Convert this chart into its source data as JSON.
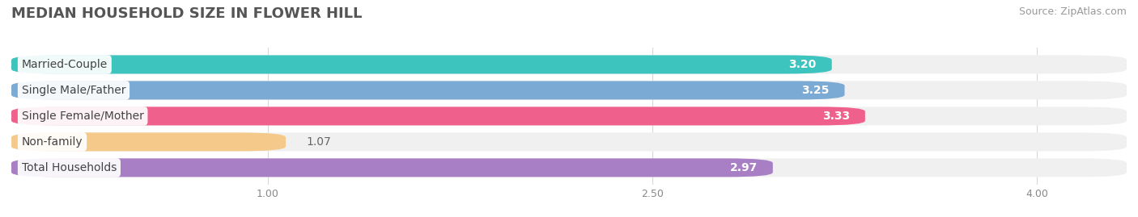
{
  "title": "MEDIAN HOUSEHOLD SIZE IN FLOWER HILL",
  "source": "Source: ZipAtlas.com",
  "categories": [
    "Married-Couple",
    "Single Male/Father",
    "Single Female/Mother",
    "Non-family",
    "Total Households"
  ],
  "values": [
    3.2,
    3.25,
    3.33,
    1.07,
    2.97
  ],
  "bar_colors": [
    "#3dc4bf",
    "#7baad4",
    "#f0608c",
    "#f5c98a",
    "#a87fc4"
  ],
  "bar_bg_color": "#f0f0f0",
  "label_bg_colors": [
    "#ffffff",
    "#ffffff",
    "#ffffff",
    "#ffffff",
    "#ffffff"
  ],
  "value_inside": [
    true,
    true,
    true,
    false,
    true
  ],
  "xlim_left": 0.0,
  "xlim_right": 4.35,
  "xticks": [
    1.0,
    2.5,
    4.0
  ],
  "title_fontsize": 13,
  "source_fontsize": 9,
  "cat_fontsize": 10,
  "value_fontsize": 10,
  "bar_height": 0.72,
  "bar_gap": 0.28,
  "background_color": "#ffffff",
  "grid_color": "#d8d8d8"
}
